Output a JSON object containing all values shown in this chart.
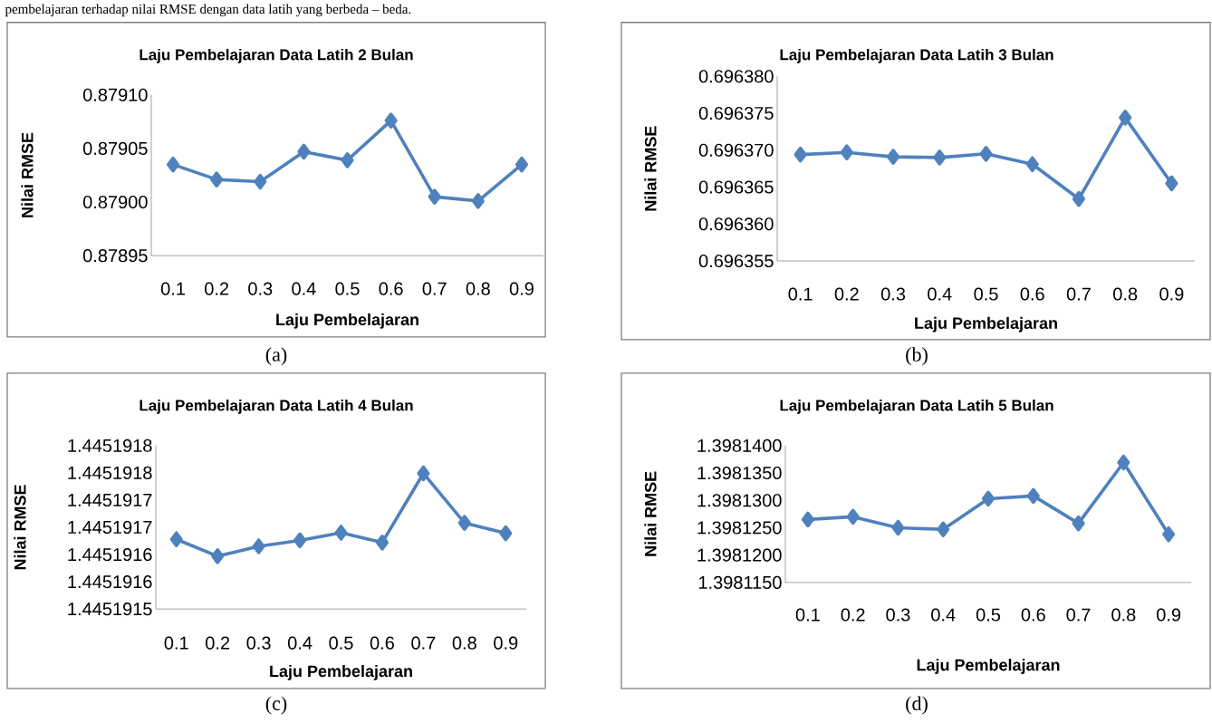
{
  "chart_data": [
    {
      "type": "line",
      "title": "Laju Pembelajaran Data Latih 2 Bulan",
      "xlabel": "Laju Pembelajaran",
      "ylabel": "Nilai RMSE",
      "categories": [
        "0.1",
        "0.2",
        "0.3",
        "0.4",
        "0.5",
        "0.6",
        "0.7",
        "0.8",
        "0.9"
      ],
      "series": [
        {
          "color": "#4f81bd",
          "values": [
            0.879035,
            0.879021,
            0.879019,
            0.879047,
            0.879039,
            0.879076,
            0.879005,
            0.879001,
            0.879035
          ]
        }
      ],
      "ylim": [
        0.87895,
        0.8791
      ],
      "yticks": [
        {
          "value": 0.87895,
          "label": "0.87895"
        },
        {
          "value": 0.879,
          "label": "0.87900"
        },
        {
          "value": 0.87905,
          "label": "0.87905"
        },
        {
          "value": 0.8791,
          "label": "0.87910"
        }
      ],
      "marker": "diamond",
      "line_style": "solid",
      "annotations": [
        "pembelajaran terhadap nilai RMSE dengan data latih yang berbeda – beda.",
        "(a)"
      ]
    },
    {
      "type": "line",
      "title": "Laju Pembelajaran Data Latih 3 Bulan",
      "xlabel": "Laju Pembelajaran",
      "ylabel": "Nilai RMSE",
      "categories": [
        "0.1",
        "0.2",
        "0.3",
        "0.4",
        "0.5",
        "0.6",
        "0.7",
        "0.8",
        "0.9"
      ],
      "series": [
        {
          "color": "#4f81bd",
          "values": [
            0.6963694,
            0.6963697,
            0.6963691,
            0.696369,
            0.6963695,
            0.6963681,
            0.6963634,
            0.6963744,
            0.6963655
          ]
        }
      ],
      "ylim": [
        0.696355,
        0.69638
      ],
      "yticks": [
        {
          "value": 0.696355,
          "label": "0.696355"
        },
        {
          "value": 0.69636,
          "label": "0.696360"
        },
        {
          "value": 0.696365,
          "label": "0.696365"
        },
        {
          "value": 0.69637,
          "label": "0.696370"
        },
        {
          "value": 0.696375,
          "label": "0.696375"
        },
        {
          "value": 0.69638,
          "label": "0.696380"
        }
      ],
      "marker": "diamond",
      "line_style": "solid",
      "annotations": [
        "(b)"
      ]
    },
    {
      "type": "line",
      "title": "Laju Pembelajaran Data Latih 4 Bulan",
      "xlabel": "Laju Pembelajaran",
      "ylabel": "Nilai RMSE",
      "categories": [
        "0.1",
        "0.2",
        "0.3",
        "0.4",
        "0.5",
        "0.6",
        "0.7",
        "0.8",
        "0.9"
      ],
      "series": [
        {
          "color": "#4f81bd",
          "values": [
            1.445191628,
            1.445191597,
            1.445191615,
            1.445191626,
            1.44519164,
            1.445191622,
            1.445191749,
            1.445191658,
            1.445191639
          ]
        }
      ],
      "ylim": [
        1.4451915,
        1.4451918
      ],
      "yticks": [
        {
          "value": 1.4451915,
          "label": "1.4451915"
        },
        {
          "value": 1.44519155,
          "label": "1.4451916"
        },
        {
          "value": 1.4451916,
          "label": "1.4451916"
        },
        {
          "value": 1.44519165,
          "label": "1.4451917"
        },
        {
          "value": 1.4451917,
          "label": "1.4451917"
        },
        {
          "value": 1.44519175,
          "label": "1.4451918"
        },
        {
          "value": 1.4451918,
          "label": "1.4451918"
        }
      ],
      "marker": "diamond",
      "line_style": "solid",
      "annotations": [
        "(c)"
      ]
    },
    {
      "type": "line",
      "title": "Laju Pembelajaran Data Latih 5 Bulan",
      "xlabel": "Laju Pembelajaran",
      "ylabel": "Nilai RMSE",
      "categories": [
        "0.1",
        "0.2",
        "0.3",
        "0.4",
        "0.5",
        "0.6",
        "0.7",
        "0.8",
        "0.9"
      ],
      "series": [
        {
          "color": "#4f81bd",
          "values": [
            1.3981265,
            1.398127,
            1.398125,
            1.3981247,
            1.3981303,
            1.3981308,
            1.3981258,
            1.3981369,
            1.3981238
          ]
        }
      ],
      "ylim": [
        1.398115,
        1.39814
      ],
      "yticks": [
        {
          "value": 1.398115,
          "label": "1.3981150"
        },
        {
          "value": 1.39812,
          "label": "1.3981200"
        },
        {
          "value": 1.398125,
          "label": "1.3981250"
        },
        {
          "value": 1.39813,
          "label": "1.3981300"
        },
        {
          "value": 1.398135,
          "label": "1.3981350"
        },
        {
          "value": 1.39814,
          "label": "1.3981400"
        }
      ],
      "marker": "diamond",
      "line_style": "solid",
      "annotations": [
        "(d)"
      ]
    }
  ]
}
